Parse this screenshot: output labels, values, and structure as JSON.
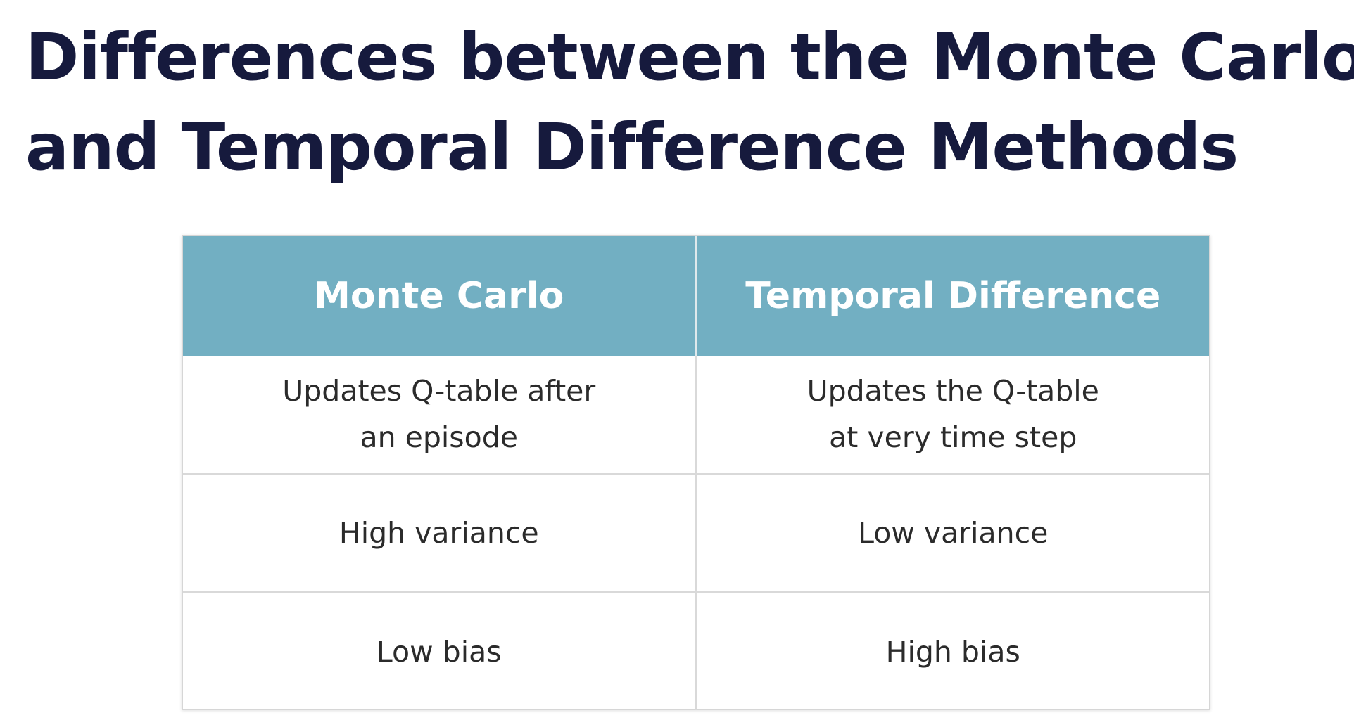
{
  "slide": {
    "title_line1": "Differences between the Monte Carlo",
    "title_line2": "and Temporal Difference Methods"
  },
  "table": {
    "headers": [
      "Monte Carlo",
      "Temporal Difference"
    ],
    "rows": [
      {
        "monte_carlo": [
          "Updates Q-table after",
          "an episode"
        ],
        "temporal_difference": [
          "Updates the Q-table",
          "at very time step"
        ]
      },
      {
        "monte_carlo": [
          "High variance"
        ],
        "temporal_difference": [
          "Low variance"
        ]
      },
      {
        "monte_carlo": [
          "Low bias"
        ],
        "temporal_difference": [
          "High bias"
        ]
      }
    ]
  },
  "colors": {
    "title_text": "#161a3d",
    "header_background": "#72afc2",
    "header_text": "#ffffff",
    "cell_text": "#2b2b2b",
    "grid_lines": "#d9d9d9"
  }
}
